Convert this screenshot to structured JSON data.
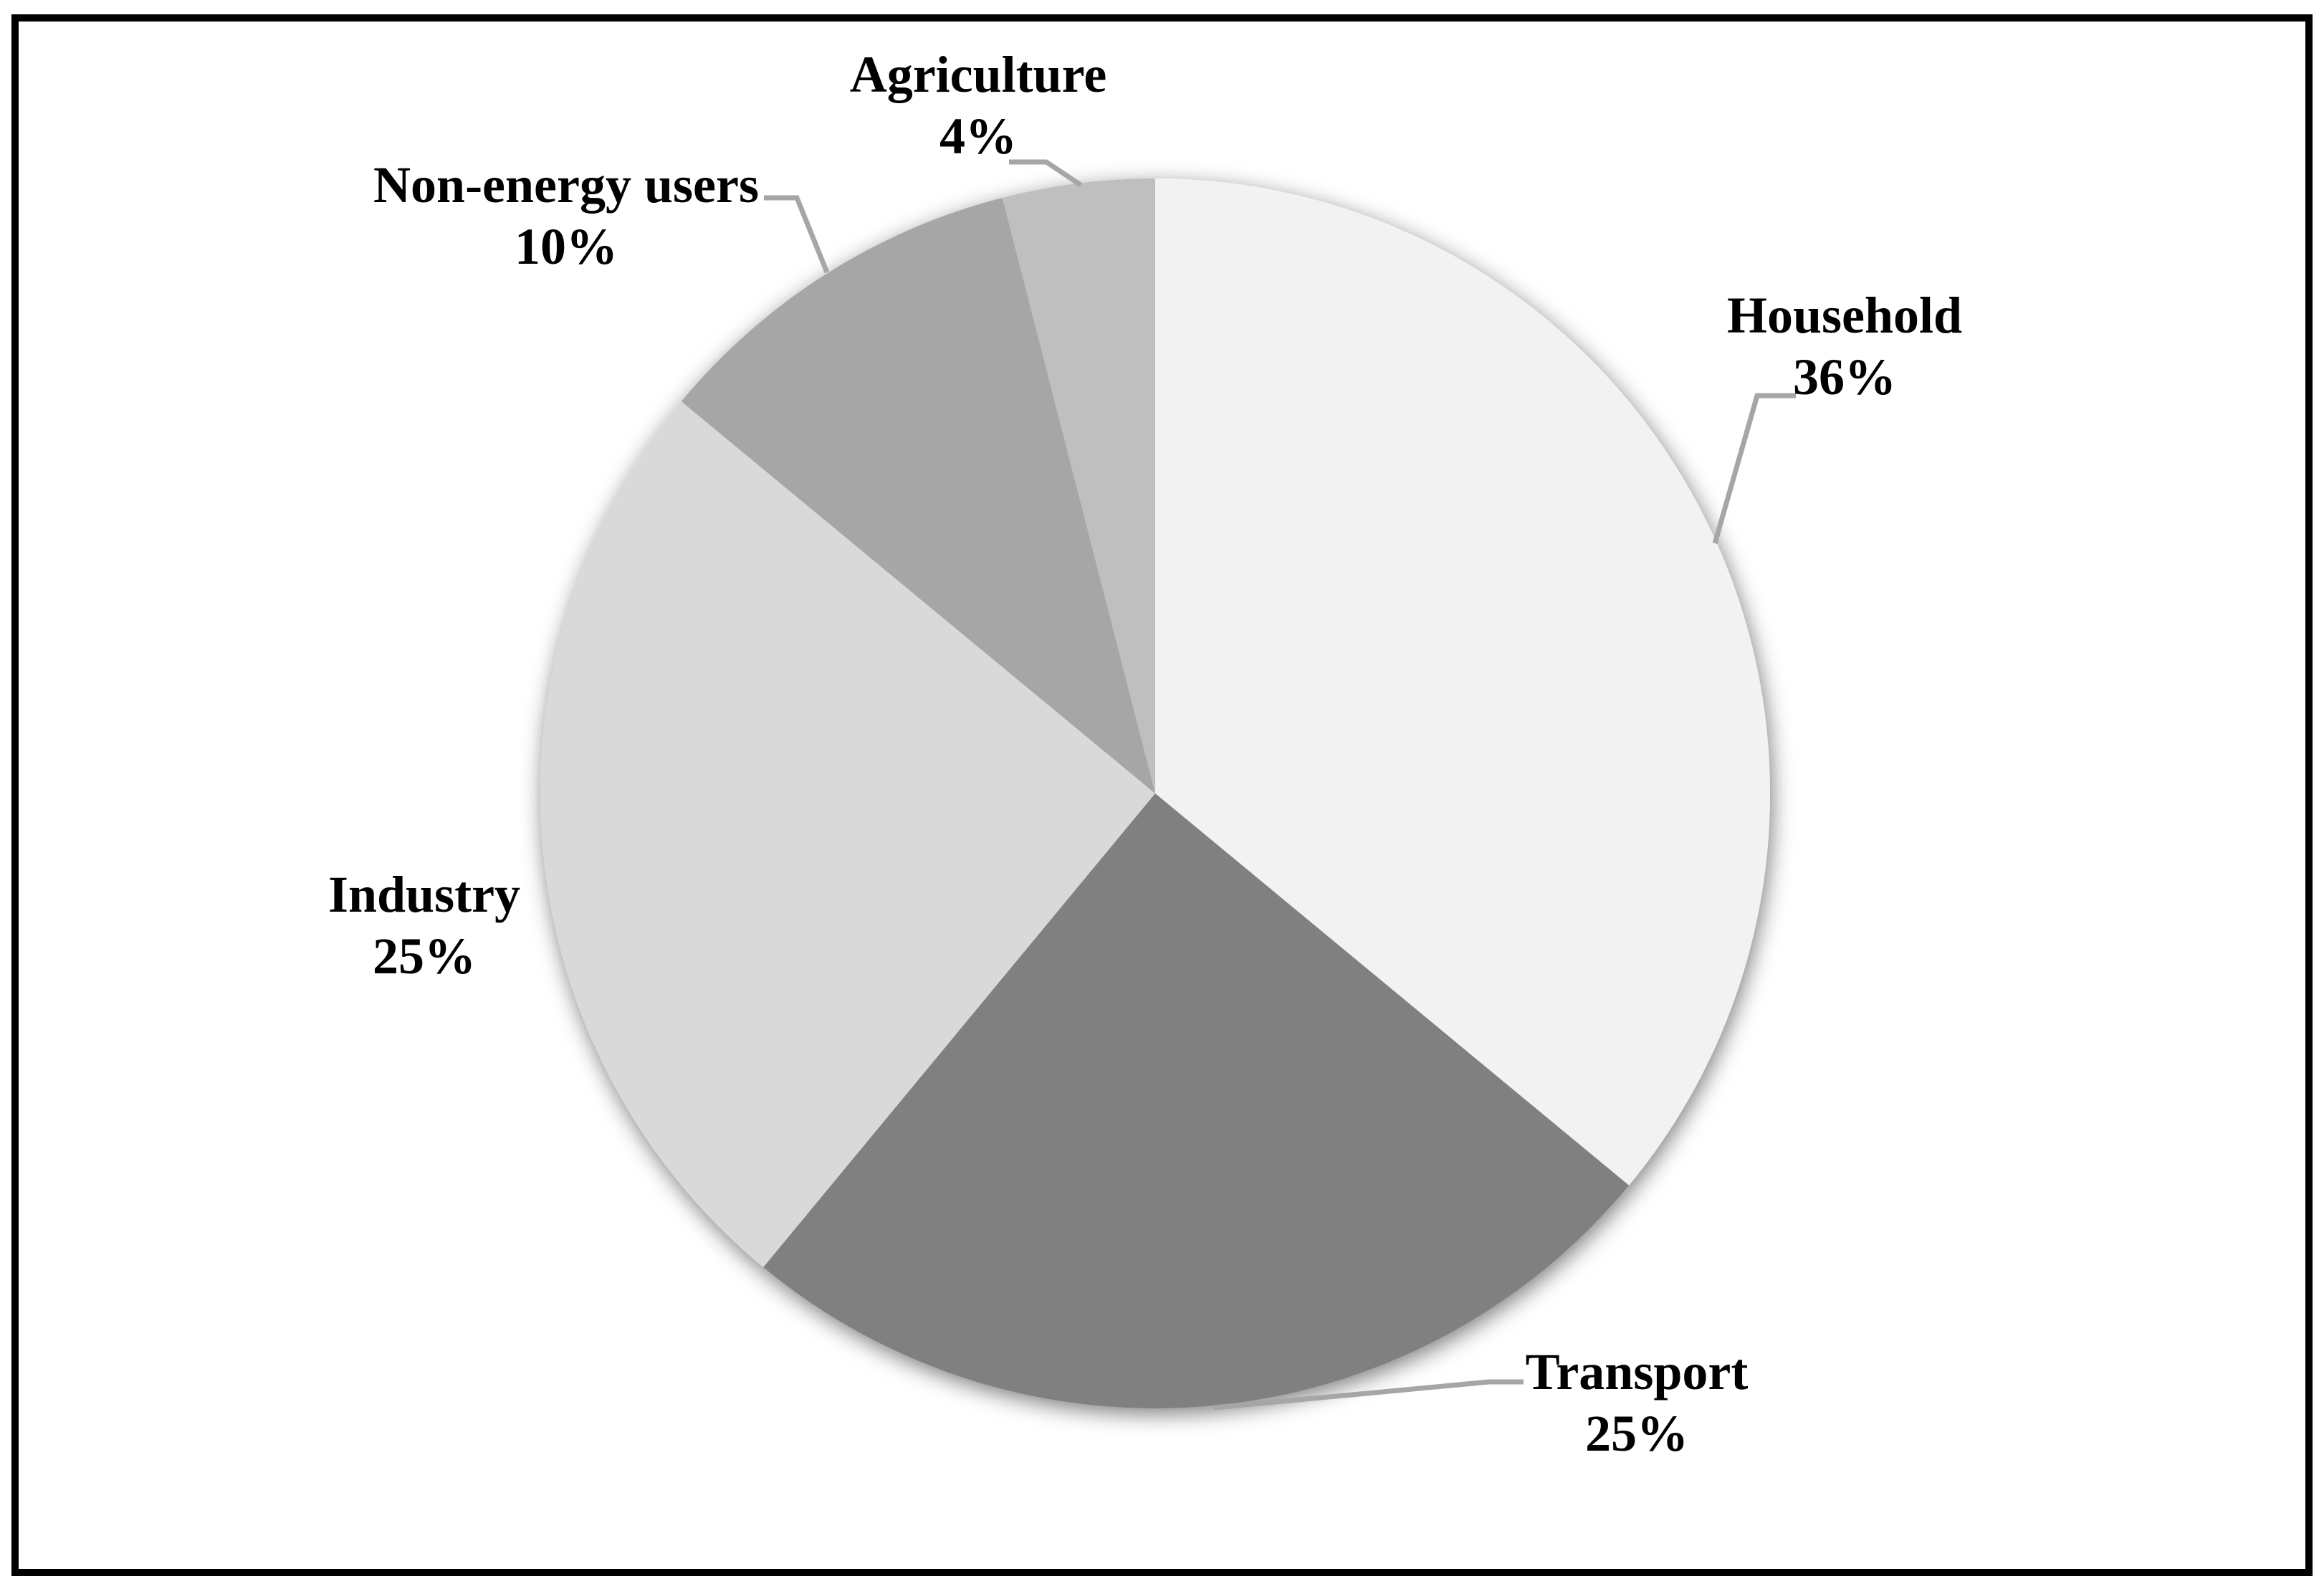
{
  "figure": {
    "kind": "pie-chart-figure",
    "background": "#FFFFFF",
    "frame_border_color": "#000000"
  },
  "chart_data": {
    "type": "pie",
    "title": "",
    "unit": "%",
    "start_angle_deg": 0,
    "direction": "clockwise",
    "legend": "none",
    "label_style": "category name and percent outside slices with bent leader lines",
    "categories": [
      "Household",
      "Transport",
      "Industry",
      "Non-energy users",
      "Agriculture"
    ],
    "values": [
      36,
      25,
      25,
      10,
      4
    ],
    "slices": [
      {
        "label": "Household",
        "value": 36,
        "value_text": "36%",
        "color": "#F2F2F2"
      },
      {
        "label": "Transport",
        "value": 25,
        "value_text": "25%",
        "color": "#808080"
      },
      {
        "label": "Industry",
        "value": 25,
        "value_text": "25%",
        "color": "#D9D9D9"
      },
      {
        "label": "Non-energy users",
        "value": 10,
        "value_text": "10%",
        "color": "#A6A6A6"
      },
      {
        "label": "Agriculture",
        "value": 4,
        "value_text": "4%",
        "color": "#BFBFBF"
      }
    ],
    "styles": {
      "leader_line": "#A6A6A6",
      "label_text": "#000000",
      "shadow": "soft gray drop shadow around pie"
    }
  }
}
